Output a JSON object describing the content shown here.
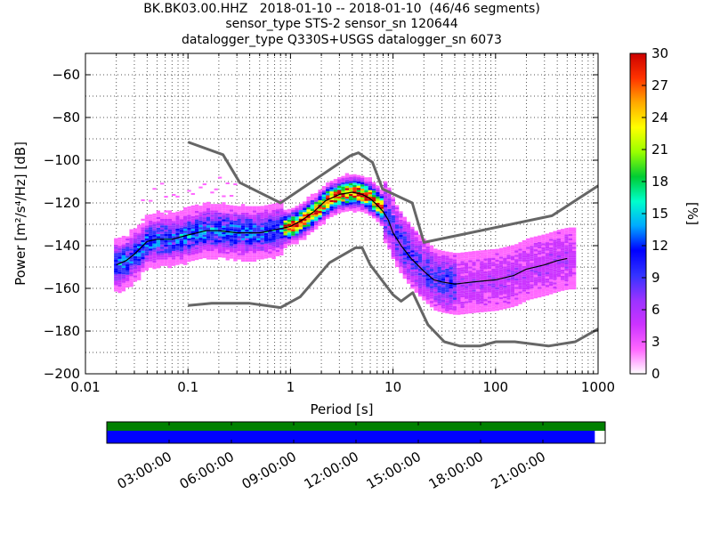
{
  "titles": {
    "line1": "BK.BK03.00.HHZ   2018-01-10 -- 2018-01-10  (46/46 segments)",
    "line2": "sensor_type STS-2 sensor_sn 120644",
    "line3": "datalogger_type Q330S+USGS datalogger_sn 6073"
  },
  "chart_data": {
    "type": "heatmap",
    "xlabel": "Period [s]",
    "ylabel": "Power [m²/s⁴/Hz] [dB]",
    "xscale": "log",
    "xlim": [
      0.01,
      1000
    ],
    "ylim": [
      -200,
      -50
    ],
    "xticks": [
      0.01,
      0.1,
      1,
      10,
      100,
      1000
    ],
    "xticklabels": [
      "0.01",
      "0.1",
      "1",
      "10",
      "100",
      "1000"
    ],
    "yticks": [
      -200,
      -180,
      -160,
      -140,
      -120,
      -100,
      -80,
      -60
    ],
    "yticklabels": [
      "−200",
      "−180",
      "−160",
      "−140",
      "−120",
      "−100",
      "−80",
      "−60"
    ],
    "grid": true,
    "colorbar": {
      "label": "[%]",
      "range": [
        0,
        30
      ],
      "ticks": [
        0,
        3,
        6,
        9,
        12,
        15,
        18,
        21,
        24,
        27,
        30
      ],
      "ticklabels": [
        "0",
        "3",
        "6",
        "9",
        "12",
        "15",
        "18",
        "21",
        "24",
        "27",
        "30"
      ],
      "colors": [
        "#ffffff",
        "#ff66ff",
        "#cc33ff",
        "#9933ff",
        "#3333ff",
        "#0000ff",
        "#00aaff",
        "#00ffcc",
        "#00cc33",
        "#99ff00",
        "#ffff00",
        "#ffaa00",
        "#ff3300",
        "#cc0000"
      ]
    },
    "nlnm": {
      "period": [
        0.1,
        0.17,
        0.4,
        0.8,
        1.24,
        2.4,
        4.3,
        5,
        6,
        10,
        12,
        15.6,
        21.9,
        31.6,
        45,
        70,
        101,
        154,
        328,
        600,
        1000
      ],
      "power": [
        -168,
        -167,
        -167,
        -169,
        -164,
        -148,
        -141,
        -141,
        -149,
        -163,
        -166,
        -162,
        -177,
        -185,
        -187,
        -187,
        -185,
        -185,
        -187,
        -185,
        -179
      ]
    },
    "nhnm": {
      "period": [
        0.1,
        0.22,
        0.32,
        0.8,
        3.8,
        4.6,
        6.3,
        7.9,
        15.4,
        20,
        354.8,
        1000
      ],
      "power": [
        -91.5,
        -97.4,
        -110.5,
        -120,
        -98,
        -96.5,
        -101,
        -113.5,
        -120,
        -138.5,
        -126,
        -112
      ]
    },
    "mode_curve": {
      "period": [
        0.02,
        0.025,
        0.03,
        0.04,
        0.05,
        0.07,
        0.1,
        0.15,
        0.2,
        0.3,
        0.5,
        0.8,
        1.0,
        1.3,
        1.7,
        2.2,
        3,
        4,
        5,
        6,
        7,
        8,
        9,
        10,
        12,
        15,
        20,
        25,
        30,
        40,
        60,
        100,
        150,
        200,
        300,
        400,
        500
      ],
      "power": [
        -149,
        -147,
        -144,
        -138,
        -137,
        -137,
        -135,
        -133,
        -133,
        -134,
        -134,
        -132,
        -131,
        -128,
        -124,
        -119,
        -116,
        -115,
        -116,
        -118,
        -121,
        -124,
        -128,
        -134,
        -140,
        -146,
        -152,
        -156,
        -157,
        -158,
        -157,
        -156,
        -154,
        -151,
        -149,
        -147,
        -146
      ]
    },
    "timeline": {
      "tick_labels": [
        "03:00:00",
        "06:00:00",
        "09:00:00",
        "12:00:00",
        "15:00:00",
        "18:00:00",
        "21:00:00"
      ],
      "tick_hours": [
        3,
        6,
        9,
        12,
        15,
        18,
        21
      ],
      "range_hours": [
        0,
        24
      ],
      "data_coverage_hours": [
        0,
        23.5
      ],
      "gap_top_color": "#008000",
      "data_color": "#0000ff"
    }
  }
}
